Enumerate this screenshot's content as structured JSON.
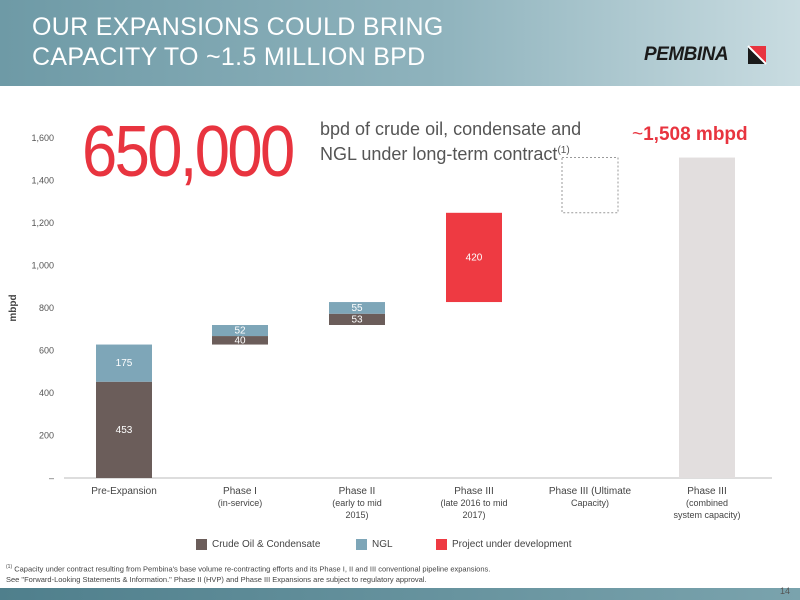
{
  "slide": {
    "title_line1": "OUR EXPANSIONS COULD BRING",
    "title_line2": "CAPACITY TO ~1.5 MILLION BPD",
    "logo_text": "PEMBINA",
    "big_number": "650,000",
    "big_number_desc": "bpd of crude oil, condensate and NGL under long-term contract",
    "big_number_sup": "(1)",
    "callout_tilde": "~",
    "callout_value": "1,508 mbpd",
    "footnote_marker": "(1)",
    "footnote_line1": "Capacity under contract resulting from Pembina's base volume re-contracting efforts and its Phase I, II and III conventional pipeline expansions.",
    "footnote_line2": "See \"Forward-Looking Statements & Information.\" Phase II (HVP) and Phase III Expansions are subject to regulatory approval.",
    "page_number": "14"
  },
  "colors": {
    "crude": "#6b5d5a",
    "ngl": "#7ea6b8",
    "project": "#ee3a42",
    "combined": "#e2dede",
    "accent": "#e8343f"
  },
  "chart_data": {
    "type": "bar",
    "subtype": "waterfall",
    "ylabel": "mbpd",
    "ylim": [
      0,
      1600
    ],
    "yticks": [
      {
        "value": 0,
        "label": "–"
      },
      {
        "value": 200,
        "label": "200"
      },
      {
        "value": 400,
        "label": "400"
      },
      {
        "value": 600,
        "label": "600"
      },
      {
        "value": 800,
        "label": "800"
      },
      {
        "value": 1000,
        "label": "1,000"
      },
      {
        "value": 1200,
        "label": "1,200"
      },
      {
        "value": 1400,
        "label": "1,400"
      },
      {
        "value": 1600,
        "label": "1,600"
      }
    ],
    "legend": [
      {
        "name": "Crude Oil & Condensate",
        "color": "#6b5d5a"
      },
      {
        "name": "NGL",
        "color": "#7ea6b8"
      },
      {
        "name": "Project under development",
        "color": "#ee3a42"
      }
    ],
    "categories": [
      {
        "label": [
          "Pre-Expansion"
        ]
      },
      {
        "label": [
          "Phase I",
          "(in-service)"
        ]
      },
      {
        "label": [
          "Phase II",
          "(early to mid",
          "2015)"
        ]
      },
      {
        "label": [
          "Phase III",
          "(late 2016 to mid",
          "2017)"
        ]
      },
      {
        "label": [
          "Phase III (Ultimate",
          "Capacity)"
        ]
      },
      {
        "label": [
          "Phase III",
          "(combined",
          "system capacity)"
        ]
      }
    ],
    "segments": [
      {
        "category": 0,
        "series": "Crude Oil & Condensate",
        "start": 0,
        "value": 453,
        "label": "453",
        "color": "#6b5d5a"
      },
      {
        "category": 0,
        "series": "NGL",
        "start": 453,
        "value": 175,
        "label": "175",
        "color": "#7ea6b8"
      },
      {
        "category": 1,
        "series": "Crude Oil & Condensate",
        "start": 628,
        "value": 40,
        "label": "40",
        "color": "#6b5d5a"
      },
      {
        "category": 1,
        "series": "NGL",
        "start": 668,
        "value": 52,
        "label": "52",
        "color": "#7ea6b8"
      },
      {
        "category": 2,
        "series": "Crude Oil & Condensate",
        "start": 720,
        "value": 53,
        "label": "53",
        "color": "#6b5d5a"
      },
      {
        "category": 2,
        "series": "NGL",
        "start": 773,
        "value": 55,
        "label": "55",
        "color": "#7ea6b8"
      },
      {
        "category": 3,
        "series": "Project under development",
        "start": 828,
        "value": 420,
        "label": "420",
        "color": "#ee3a42"
      },
      {
        "category": 4,
        "series": "Ultimate capacity",
        "start": 1248,
        "value": 260,
        "label": "",
        "color": "none",
        "dashed": true
      },
      {
        "category": 5,
        "series": "Combined system capacity",
        "start": 0,
        "value": 1508,
        "label": "",
        "color": "#e2dede"
      }
    ]
  }
}
